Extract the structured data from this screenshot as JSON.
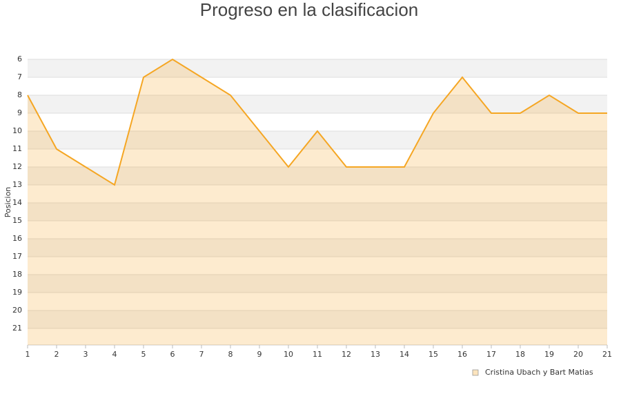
{
  "chart_data": {
    "type": "area-line",
    "title": "Progreso en la clasificacion",
    "y_label": "Posicion",
    "x": [
      1,
      2,
      3,
      4,
      5,
      6,
      7,
      8,
      9,
      10,
      11,
      12,
      13,
      14,
      15,
      16,
      17,
      18,
      19,
      20,
      21
    ],
    "series": [
      {
        "name": "Cristina Ubach y Bart Matias",
        "color": "#f5a623",
        "values": [
          8,
          11,
          12,
          13,
          7,
          6,
          7,
          8,
          10,
          12,
          10,
          12,
          12,
          12,
          9,
          7,
          9,
          9,
          8,
          9,
          9
        ]
      }
    ],
    "xlim": [
      1,
      21
    ],
    "xticks": [
      1,
      2,
      3,
      4,
      5,
      6,
      7,
      8,
      9,
      10,
      11,
      12,
      13,
      14,
      15,
      16,
      17,
      18,
      19,
      20,
      21
    ],
    "ylim": [
      6,
      22
    ],
    "yticks": [
      6,
      7,
      8,
      9,
      10,
      11,
      12,
      13,
      14,
      15,
      16,
      17,
      18,
      19,
      20,
      21
    ],
    "y_inverted": true,
    "grid": true,
    "legend": "bottom-right"
  }
}
